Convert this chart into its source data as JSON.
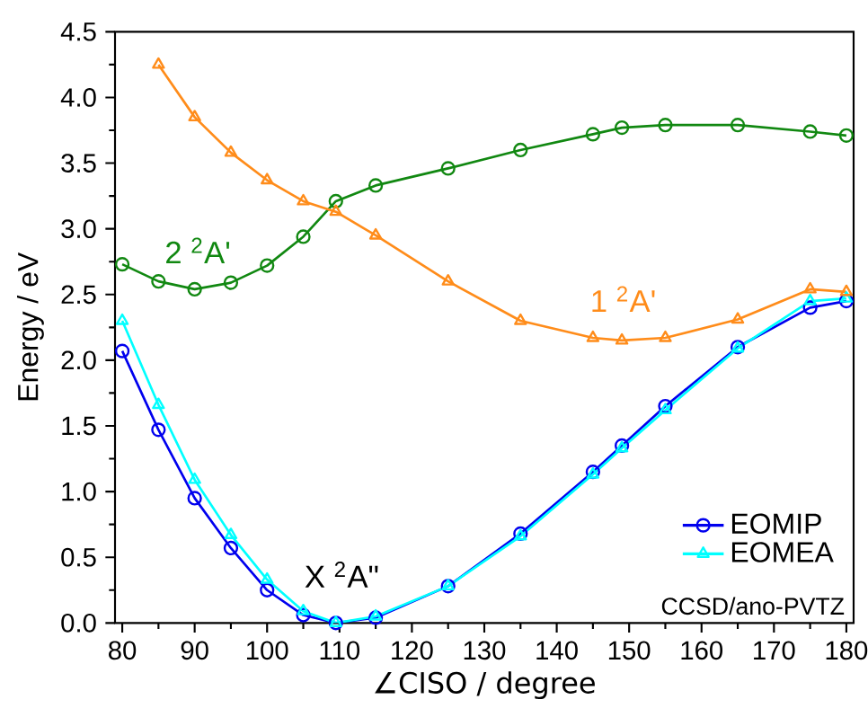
{
  "chart_data": {
    "type": "line",
    "xlabel": "∠CISO / degree",
    "ylabel": "Energy / eV",
    "x": [
      80,
      85,
      90,
      95,
      100,
      105,
      109.5,
      115,
      125,
      135,
      145,
      149,
      155,
      165,
      175,
      180
    ],
    "series": [
      {
        "name": "EOMIP",
        "color": "#0000ee",
        "marker": "circle",
        "values": [
          2.07,
          1.47,
          0.95,
          0.57,
          0.25,
          0.06,
          0.0,
          0.04,
          0.28,
          0.68,
          1.15,
          1.35,
          1.65,
          2.1,
          2.4,
          2.45
        ]
      },
      {
        "name": "EOMEA",
        "color": "#00ffff",
        "marker": "triangle",
        "values": [
          2.3,
          1.66,
          1.09,
          0.67,
          0.33,
          0.09,
          0.0,
          0.05,
          0.28,
          0.66,
          1.13,
          1.33,
          1.62,
          2.09,
          2.45,
          2.47
        ]
      },
      {
        "name": "2 $^{2}$A'",
        "color": "#118811",
        "marker": "circle",
        "values": [
          2.73,
          2.6,
          2.54,
          2.59,
          2.72,
          2.94,
          3.21,
          3.33,
          3.46,
          3.6,
          3.72,
          3.77,
          3.79,
          3.79,
          3.74,
          3.71
        ]
      },
      {
        "name": "1 $^{2}$A'",
        "color": "#ff8c1a",
        "marker": "triangle",
        "values": [
          null,
          4.25,
          3.85,
          3.58,
          3.37,
          3.21,
          3.13,
          2.95,
          2.6,
          2.3,
          2.17,
          2.15,
          2.17,
          2.31,
          2.54,
          2.52
        ]
      }
    ],
    "annotations": [
      "X $^{2}$A\"",
      "CCSD/ano-PVTZ"
    ],
    "xlim": [
      79,
      181
    ],
    "ylim": [
      0,
      4.5
    ],
    "xticks": [
      80,
      90,
      100,
      110,
      120,
      130,
      140,
      150,
      160,
      170,
      180
    ],
    "yticks": [
      {
        "value": 0,
        "label": "0.0"
      },
      0.5,
      {
        "value": 1,
        "label": "1.0"
      },
      1.5,
      {
        "value": 2,
        "label": "2.0"
      },
      2.5,
      {
        "value": 3,
        "label": "3.0"
      },
      3.5,
      {
        "value": 4,
        "label": "4.0"
      },
      4.5
    ],
    "legend": "bottom right",
    "grid": false
  }
}
